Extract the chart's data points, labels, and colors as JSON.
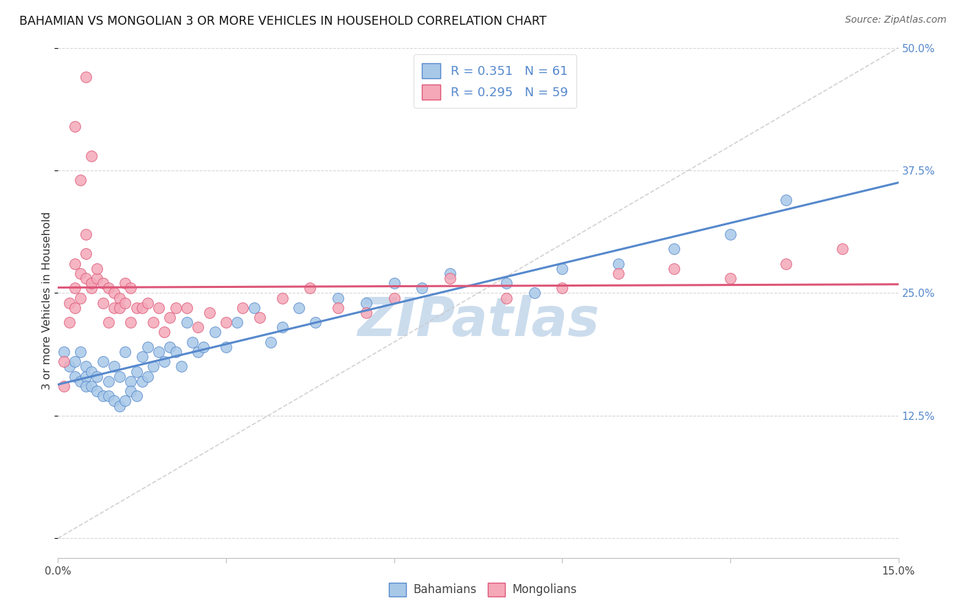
{
  "title": "BAHAMIAN VS MONGOLIAN 3 OR MORE VEHICLES IN HOUSEHOLD CORRELATION CHART",
  "source": "Source: ZipAtlas.com",
  "ylabel": "3 or more Vehicles in Household",
  "x_min": 0.0,
  "x_max": 0.15,
  "y_min": 0.0,
  "y_max": 0.5,
  "x_ticks": [
    0.0,
    0.03,
    0.06,
    0.09,
    0.12,
    0.15
  ],
  "y_ticks": [
    0.0,
    0.125,
    0.25,
    0.375,
    0.5
  ],
  "legend_r1": "0.351",
  "legend_n1": "61",
  "legend_r2": "0.295",
  "legend_n2": "59",
  "bahamian_color": "#a8c8e8",
  "mongolian_color": "#f4a8b8",
  "trend_blue": "#5588cc",
  "trend_pink": "#dd5577",
  "trend_dashed_color": "#cccccc",
  "watermark": "ZIPatlas",
  "watermark_color": "#99bbdd",
  "bah_x": [
    0.001,
    0.002,
    0.003,
    0.003,
    0.004,
    0.004,
    0.005,
    0.005,
    0.005,
    0.006,
    0.006,
    0.007,
    0.007,
    0.008,
    0.008,
    0.009,
    0.009,
    0.01,
    0.01,
    0.011,
    0.011,
    0.012,
    0.012,
    0.013,
    0.013,
    0.014,
    0.014,
    0.015,
    0.015,
    0.016,
    0.016,
    0.017,
    0.018,
    0.019,
    0.02,
    0.021,
    0.022,
    0.023,
    0.024,
    0.025,
    0.026,
    0.028,
    0.03,
    0.032,
    0.035,
    0.038,
    0.04,
    0.043,
    0.046,
    0.05,
    0.055,
    0.06,
    0.065,
    0.07,
    0.08,
    0.085,
    0.09,
    0.1,
    0.11,
    0.12,
    0.13
  ],
  "bah_y": [
    0.19,
    0.175,
    0.18,
    0.165,
    0.19,
    0.16,
    0.175,
    0.165,
    0.155,
    0.17,
    0.155,
    0.165,
    0.15,
    0.18,
    0.145,
    0.16,
    0.145,
    0.175,
    0.14,
    0.165,
    0.135,
    0.14,
    0.19,
    0.16,
    0.15,
    0.17,
    0.145,
    0.16,
    0.185,
    0.165,
    0.195,
    0.175,
    0.19,
    0.18,
    0.195,
    0.19,
    0.175,
    0.22,
    0.2,
    0.19,
    0.195,
    0.21,
    0.195,
    0.22,
    0.235,
    0.2,
    0.215,
    0.235,
    0.22,
    0.245,
    0.24,
    0.26,
    0.255,
    0.27,
    0.26,
    0.25,
    0.275,
    0.28,
    0.295,
    0.31,
    0.345
  ],
  "mon_x": [
    0.001,
    0.001,
    0.002,
    0.002,
    0.003,
    0.003,
    0.003,
    0.004,
    0.004,
    0.005,
    0.005,
    0.005,
    0.006,
    0.006,
    0.007,
    0.007,
    0.008,
    0.008,
    0.009,
    0.009,
    0.01,
    0.01,
    0.011,
    0.011,
    0.012,
    0.012,
    0.013,
    0.013,
    0.014,
    0.015,
    0.016,
    0.017,
    0.018,
    0.019,
    0.02,
    0.021,
    0.023,
    0.025,
    0.027,
    0.03,
    0.033,
    0.036,
    0.04,
    0.045,
    0.05,
    0.055,
    0.06,
    0.07,
    0.08,
    0.09,
    0.1,
    0.11,
    0.12,
    0.13,
    0.14,
    0.003,
    0.004,
    0.005,
    0.006
  ],
  "mon_y": [
    0.18,
    0.155,
    0.24,
    0.22,
    0.28,
    0.255,
    0.235,
    0.27,
    0.245,
    0.29,
    0.265,
    0.31,
    0.255,
    0.26,
    0.265,
    0.275,
    0.24,
    0.26,
    0.255,
    0.22,
    0.235,
    0.25,
    0.245,
    0.235,
    0.26,
    0.24,
    0.255,
    0.22,
    0.235,
    0.235,
    0.24,
    0.22,
    0.235,
    0.21,
    0.225,
    0.235,
    0.235,
    0.215,
    0.23,
    0.22,
    0.235,
    0.225,
    0.245,
    0.255,
    0.235,
    0.23,
    0.245,
    0.265,
    0.245,
    0.255,
    0.27,
    0.275,
    0.265,
    0.28,
    0.295,
    0.42,
    0.365,
    0.47,
    0.39
  ]
}
